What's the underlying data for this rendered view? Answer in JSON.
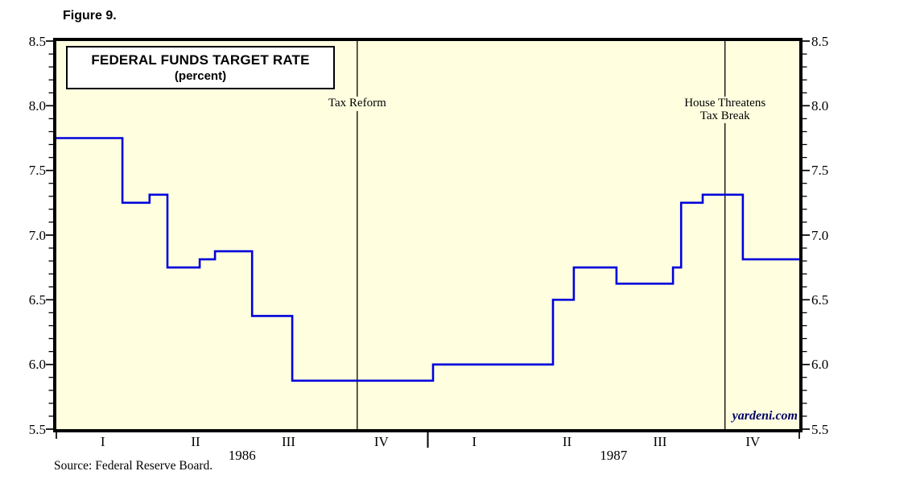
{
  "figure_label": "Figure 9.",
  "title": {
    "line1": "FEDERAL FUNDS TARGET RATE",
    "line2": "(percent)"
  },
  "source": "Source: Federal Reserve Board.",
  "watermark": "yardeni.com",
  "colors": {
    "plot_bg": "#FFFFE0",
    "line": "#0000DC",
    "frame": "#000000",
    "annotation_line": "#000000",
    "watermark": "#000066",
    "page_bg": "#FFFFFF"
  },
  "chart_data": {
    "type": "line",
    "style": "step",
    "title": "FEDERAL FUNDS TARGET RATE (percent)",
    "xlim": [
      1986,
      1988
    ],
    "ylim": [
      5.5,
      8.5
    ],
    "y_major_step": 0.5,
    "y_minor_step": 0.1,
    "y_tick_labels": [
      "5.5",
      "6.0",
      "6.5",
      "7.0",
      "7.5",
      "8.0",
      "8.5"
    ],
    "y_axis_sides": [
      "left",
      "right"
    ],
    "grid": false,
    "x_quarter_labels": [
      "I",
      "II",
      "III",
      "IV"
    ],
    "x_year_labels": [
      "1986",
      "1987"
    ],
    "series": [
      {
        "name": "Federal Funds Target Rate",
        "steps": [
          {
            "start": 1986.0,
            "end": 1986.178,
            "value": 7.75
          },
          {
            "start": 1986.178,
            "end": 1986.251,
            "value": 7.25
          },
          {
            "start": 1986.251,
            "end": 1986.299,
            "value": 7.3125
          },
          {
            "start": 1986.299,
            "end": 1986.386,
            "value": 6.75
          },
          {
            "start": 1986.386,
            "end": 1986.427,
            "value": 6.8125
          },
          {
            "start": 1986.427,
            "end": 1986.527,
            "value": 6.875
          },
          {
            "start": 1986.527,
            "end": 1986.635,
            "value": 6.375
          },
          {
            "start": 1986.635,
            "end": 1987.014,
            "value": 5.875
          },
          {
            "start": 1987.014,
            "end": 1987.337,
            "value": 6.0
          },
          {
            "start": 1987.337,
            "end": 1987.393,
            "value": 6.5
          },
          {
            "start": 1987.393,
            "end": 1987.508,
            "value": 6.75
          },
          {
            "start": 1987.508,
            "end": 1987.66,
            "value": 6.625
          },
          {
            "start": 1987.66,
            "end": 1987.682,
            "value": 6.75
          },
          {
            "start": 1987.682,
            "end": 1987.74,
            "value": 7.25
          },
          {
            "start": 1987.74,
            "end": 1987.848,
            "value": 7.3125
          },
          {
            "start": 1987.848,
            "end": 1988.0,
            "value": 6.8125
          }
        ]
      }
    ],
    "annotations": [
      {
        "x": 1986.81,
        "label_lines": [
          "Tax Reform"
        ]
      },
      {
        "x": 1987.8,
        "label_lines": [
          "House Threatens",
          "Tax Break"
        ]
      }
    ]
  }
}
